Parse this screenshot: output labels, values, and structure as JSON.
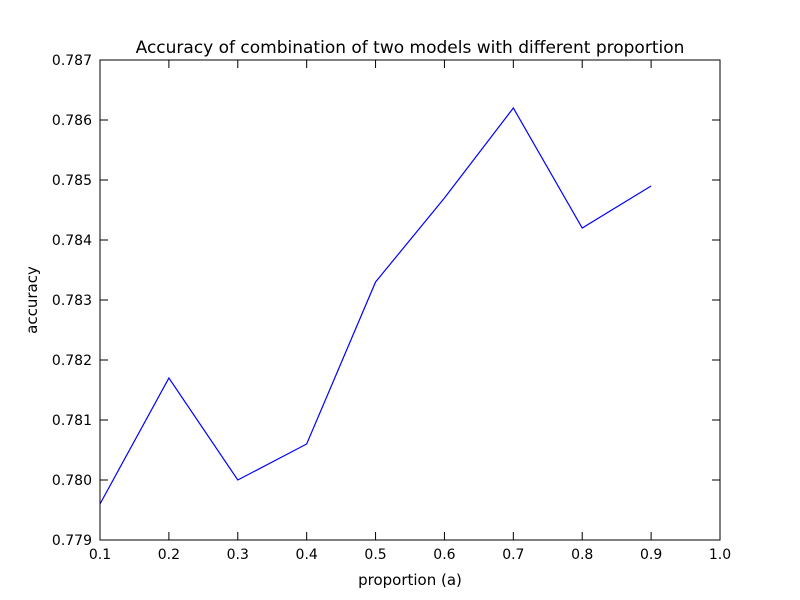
{
  "chart_data": {
    "type": "line",
    "title": "Accuracy of combination of two models with different proportion",
    "xlabel": "proportion (a)",
    "ylabel": "accuracy",
    "xlim": [
      0.1,
      1.0
    ],
    "ylim": [
      0.779,
      0.787
    ],
    "xticks": [
      "0.1",
      "0.2",
      "0.3",
      "0.4",
      "0.5",
      "0.6",
      "0.7",
      "0.8",
      "0.9",
      "1.0"
    ],
    "yticks": [
      "0.779",
      "0.780",
      "0.781",
      "0.782",
      "0.783",
      "0.784",
      "0.785",
      "0.786",
      "0.787"
    ],
    "grid": false,
    "series": [
      {
        "color": "#0000ff",
        "x": [
          0.1,
          0.2,
          0.3,
          0.4,
          0.5,
          0.6,
          0.7,
          0.8,
          0.9
        ],
        "y": [
          0.7796,
          0.7817,
          0.78,
          0.7806,
          0.7833,
          0.7847,
          0.7862,
          0.7842,
          0.7849
        ]
      }
    ]
  }
}
